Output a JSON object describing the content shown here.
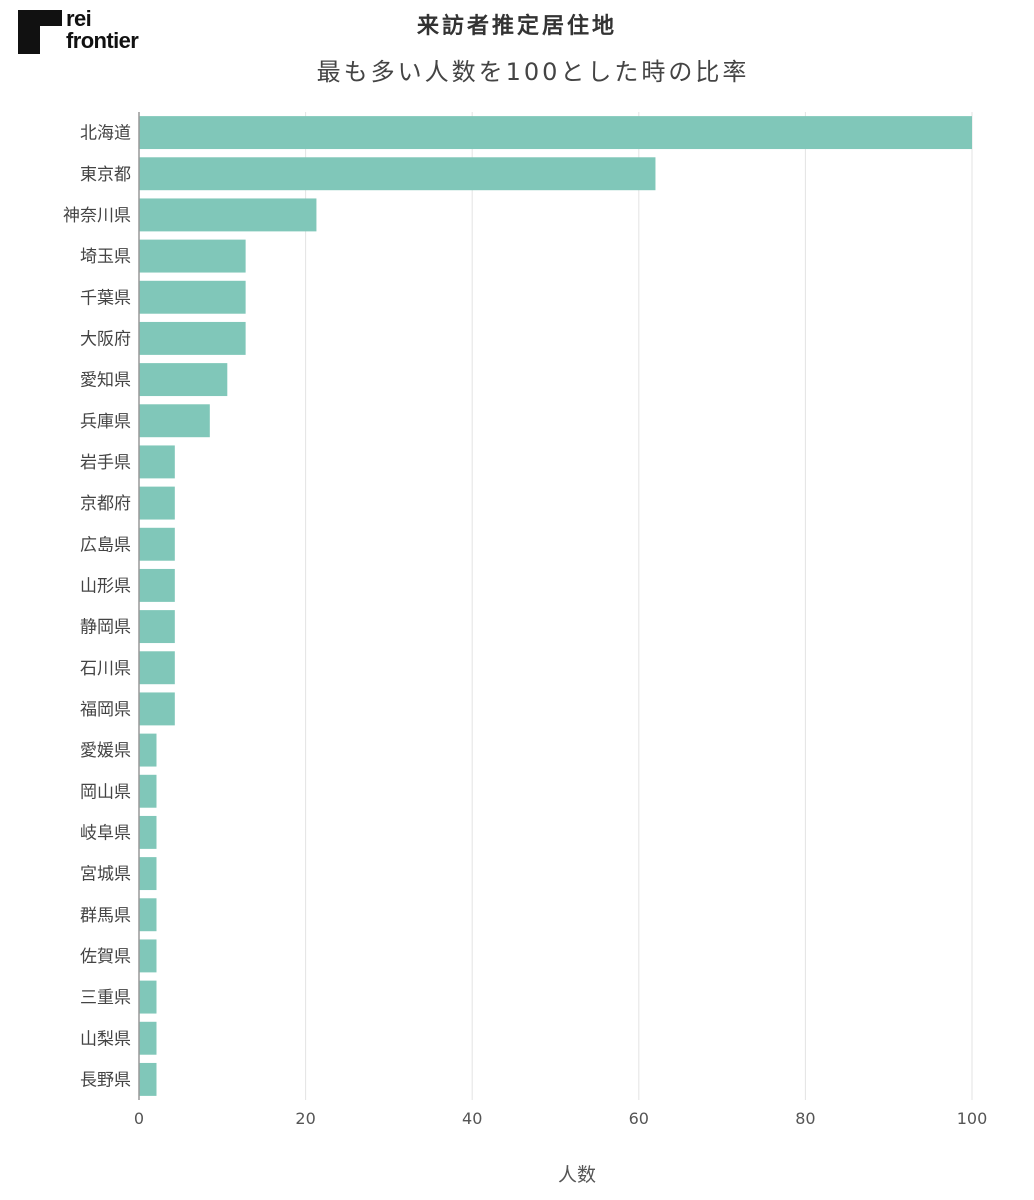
{
  "brand": {
    "logo_text_line1": "rei",
    "logo_text_line2": "frontier"
  },
  "colors": {
    "bar": "#80c7b9",
    "grid": "#e3e3e3",
    "axis": "#999999",
    "text": "#444444"
  },
  "chart_data": {
    "type": "bar",
    "orientation": "horizontal",
    "title": "来訪者推定居住地",
    "subtitle": "最も多い人数を100とした時の比率",
    "xlabel": "人数",
    "ylabel": "",
    "xlim": [
      0,
      100
    ],
    "xticks": [
      0,
      20,
      40,
      60,
      80,
      100
    ],
    "grid": "vertical",
    "categories": [
      "北海道",
      "東京都",
      "神奈川県",
      "埼玉県",
      "千葉県",
      "大阪府",
      "愛知県",
      "兵庫県",
      "岩手県",
      "京都府",
      "広島県",
      "山形県",
      "静岡県",
      "石川県",
      "福岡県",
      "愛媛県",
      "岡山県",
      "岐阜県",
      "宮城県",
      "群馬県",
      "佐賀県",
      "三重県",
      "山梨県",
      "長野県"
    ],
    "values": [
      100,
      62,
      21.3,
      12.8,
      12.8,
      12.8,
      10.6,
      8.5,
      4.3,
      4.3,
      4.3,
      4.3,
      4.3,
      4.3,
      4.3,
      2.1,
      2.1,
      2.1,
      2.1,
      2.1,
      2.1,
      2.1,
      2.1,
      2.1
    ]
  }
}
